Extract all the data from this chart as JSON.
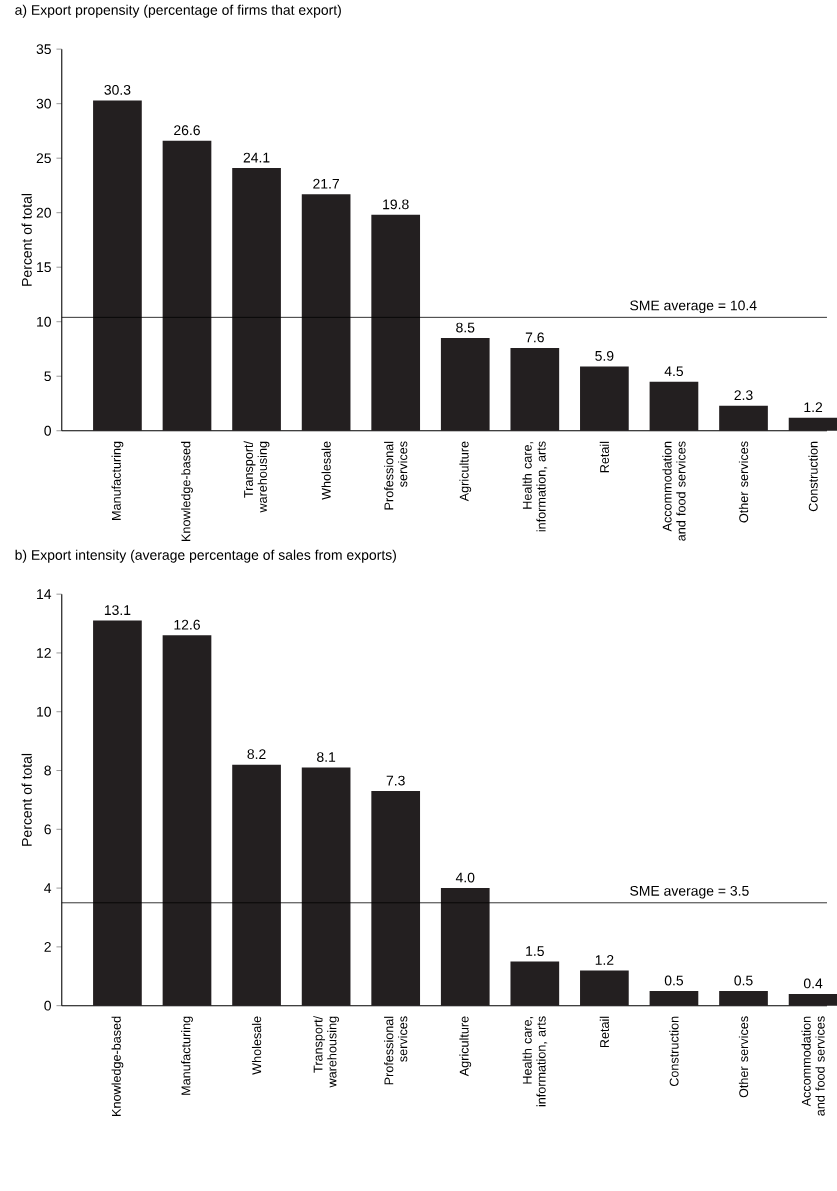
{
  "chart_data": [
    {
      "type": "bar",
      "title": "a) Export propensity (percentage of firms that export)",
      "ylabel": "Percent of total",
      "categories": [
        "Manufacturing",
        "Knowledge-based",
        "Transport/ warehousing",
        "Wholesale",
        "Professional services",
        "Agriculture",
        "Health care, information, arts",
        "Retail",
        "Accommodation and food services",
        "Other services",
        "Construction"
      ],
      "values": [
        30.3,
        26.6,
        24.1,
        21.7,
        19.8,
        8.5,
        7.6,
        5.9,
        4.5,
        2.3,
        1.2
      ],
      "value_labels": [
        "30.3",
        "26.6",
        "24.1",
        "21.7",
        "19.8",
        "8.5",
        "7.6",
        "5.9",
        "4.5",
        "2.3",
        "1.2"
      ],
      "color": "#231f20",
      "ylim": [
        0,
        35
      ],
      "yticks": [
        0,
        5,
        10,
        15,
        20,
        25,
        30,
        35
      ],
      "ref_lines": [
        {
          "axis": "y",
          "value": 10.4,
          "label": "SME average = 10.4"
        }
      ]
    },
    {
      "type": "bar",
      "title": "b) Export intensity (average percentage of sales from exports)",
      "ylabel": "Percent of total",
      "categories": [
        "Knowledge-based",
        "Manufacturing",
        "Wholesale",
        "Transport/ warehousing",
        "Professional services",
        "Agriculture",
        "Health care, information, arts",
        "Retail",
        "Construction",
        "Other services",
        "Accommodation and food services"
      ],
      "values": [
        13.1,
        12.6,
        8.2,
        8.1,
        7.3,
        4.0,
        1.5,
        1.2,
        0.5,
        0.5,
        0.4
      ],
      "value_labels": [
        "13.1",
        "12.6",
        "8.2",
        "8.1",
        "7.3",
        "4.0",
        "1.5",
        "1.2",
        "0.5",
        "0.5",
        "0.4"
      ],
      "color": "#231f20",
      "ylim": [
        0,
        14
      ],
      "yticks": [
        0,
        2,
        4,
        6,
        8,
        10,
        12,
        14
      ],
      "ref_lines": [
        {
          "axis": "y",
          "value": 3.5,
          "label": "SME average = 3.5"
        }
      ]
    }
  ]
}
